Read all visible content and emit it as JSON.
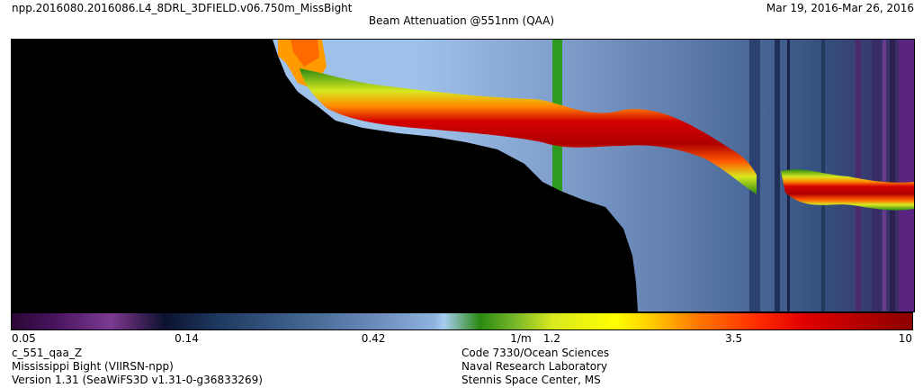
{
  "header": {
    "file_name": "npp.2016080.2016086.L4_8DRL_3DFIELD.v06.750m_MissBight",
    "date_range": "Mar 19, 2016-Mar 26, 2016",
    "title": "Beam Attenuation @551nm (QAA)"
  },
  "chart_data": {
    "type": "heatmap",
    "title": "Beam Attenuation @551nm (QAA)",
    "colorbar": {
      "scale": "log",
      "range": [
        0.05,
        10
      ],
      "ticks": [
        "0.05",
        "0.14",
        "0.42",
        "1/m",
        "1.2",
        "3.5",
        "10"
      ],
      "tick_values": [
        0.05,
        0.14,
        0.42,
        1,
        1.2,
        3.5,
        10
      ]
    },
    "no_data_color": "#000000",
    "background_color": "#7a93bd",
    "peak_color": "#c80000"
  },
  "footer": {
    "left": [
      "c_551_qaa_Z",
      "Mississippi Bight (VIIRSN-npp)",
      "Version 1.31 (SeaWiFS3D v1.31-0-g36833269)"
    ],
    "right": [
      "Code 7330/Ocean Sciences",
      "Naval Research Laboratory",
      "Stennis Space Center, MS"
    ]
  }
}
